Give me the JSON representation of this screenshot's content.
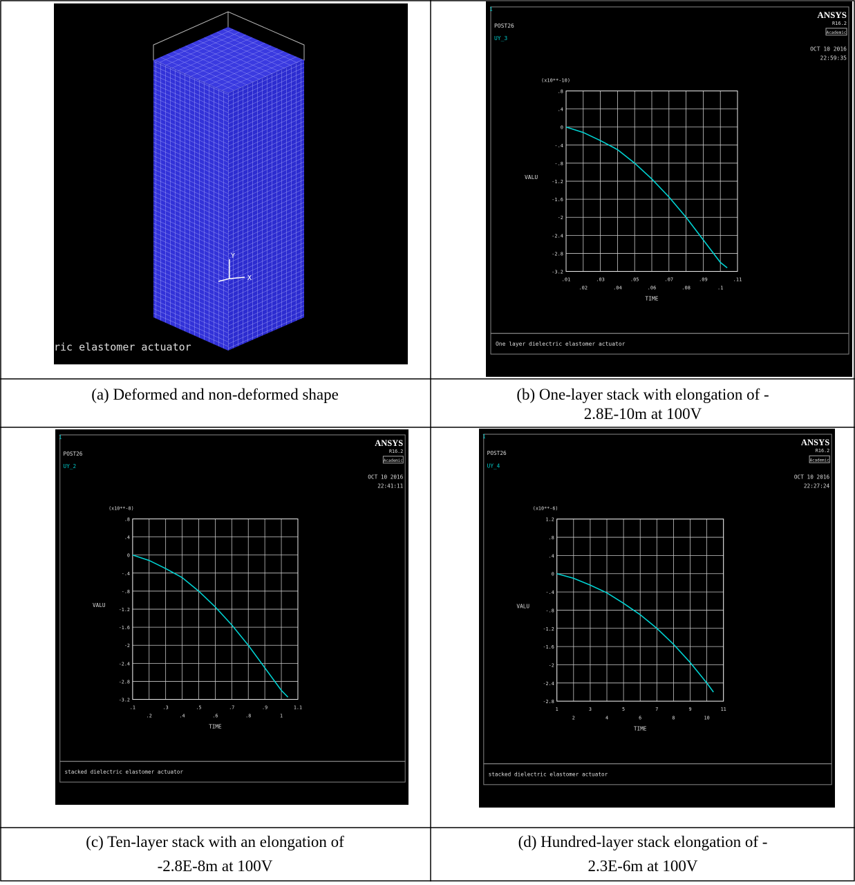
{
  "panels": [
    {
      "image": {
        "footer": "ric elastomer actuator",
        "axis_labels": [
          "Y",
          "X"
        ]
      },
      "caption": [
        "(a) Deformed and non-deformed shape"
      ]
    },
    {
      "plot": {
        "type": "line",
        "index": "1",
        "header": "POST26",
        "variable": "UY_3",
        "brand": "ANSYS",
        "version": "R16.2",
        "license": "Academic",
        "date": "OCT 10 2016",
        "time": "22:59:35",
        "multiplier": "(x10**-10)",
        "ylabel": "VALU",
        "xlabel": "TIME",
        "footer": "One layer dielectric elastomer actuator",
        "color": "#00d4d4",
        "x": [
          0.01,
          0.02,
          0.03,
          0.04,
          0.05,
          0.06,
          0.07,
          0.08,
          0.09,
          0.1,
          0.104
        ],
        "values": [
          0,
          -0.12,
          -0.3,
          -0.5,
          -0.8,
          -1.15,
          -1.55,
          -2.0,
          -2.5,
          -3.0,
          -3.12
        ],
        "xlim": [
          0.01,
          0.11
        ],
        "ylim": [
          -3.2,
          0.8
        ],
        "xticks": [
          {
            "value": 0.01,
            "label": ".01"
          },
          {
            "value": 0.02,
            "label": ".02"
          },
          {
            "value": 0.03,
            "label": ".03"
          },
          {
            "value": 0.04,
            "label": ".04"
          },
          {
            "value": 0.05,
            "label": ".05"
          },
          {
            "value": 0.06,
            "label": ".06"
          },
          {
            "value": 0.07,
            "label": ".07"
          },
          {
            "value": 0.08,
            "label": ".08"
          },
          {
            "value": 0.09,
            "label": ".09"
          },
          {
            "value": 0.1,
            "label": ".1"
          },
          {
            "value": 0.11,
            "label": ".11"
          }
        ],
        "yticks": [
          {
            "value": 0.8,
            "label": ".8"
          },
          {
            "value": 0.4,
            "label": ".4"
          },
          0,
          {
            "value": -0.4,
            "label": "-.4"
          },
          {
            "value": -0.8,
            "label": "-.8"
          },
          -1.2,
          -1.6,
          -2,
          -2.4,
          -2.8,
          -3.2
        ]
      },
      "caption": [
        "(b) One-layer stack with elongation of -",
        "2.8E-10m at 100V"
      ]
    },
    {
      "plot": {
        "type": "line",
        "index": "1",
        "header": "POST26",
        "variable": "UY_2",
        "brand": "ANSYS",
        "version": "R16.2",
        "license": "Academic",
        "date": "OCT 10 2016",
        "time": "22:41:11",
        "multiplier": "(x10**-8)",
        "ylabel": "VALU",
        "xlabel": "TIME",
        "footer": "stacked dielectric elastomer actuator",
        "color": "#00d4d4",
        "x": [
          0.1,
          0.2,
          0.3,
          0.4,
          0.5,
          0.6,
          0.7,
          0.8,
          0.9,
          1.0,
          1.04
        ],
        "values": [
          0,
          -0.12,
          -0.3,
          -0.5,
          -0.8,
          -1.15,
          -1.55,
          -2.0,
          -2.5,
          -3.0,
          -3.15
        ],
        "xlim": [
          0.1,
          1.1
        ],
        "ylim": [
          -3.2,
          0.8
        ],
        "xticks": [
          {
            "value": 0.1,
            "label": ".1"
          },
          {
            "value": 0.2,
            "label": ".2"
          },
          {
            "value": 0.3,
            "label": ".3"
          },
          {
            "value": 0.4,
            "label": ".4"
          },
          {
            "value": 0.5,
            "label": ".5"
          },
          {
            "value": 0.6,
            "label": ".6"
          },
          {
            "value": 0.7,
            "label": ".7"
          },
          {
            "value": 0.8,
            "label": ".8"
          },
          {
            "value": 0.9,
            "label": ".9"
          },
          1,
          1.1
        ],
        "yticks": [
          {
            "value": 0.8,
            "label": ".8"
          },
          {
            "value": 0.4,
            "label": ".4"
          },
          0,
          {
            "value": -0.4,
            "label": "-.4"
          },
          {
            "value": -0.8,
            "label": "-.8"
          },
          -1.2,
          -1.6,
          -2,
          -2.4,
          -2.8,
          -3.2
        ]
      },
      "caption": [
        "(c) Ten-layer stack with an elongation of",
        "-2.8E-8m at 100V"
      ]
    },
    {
      "plot": {
        "type": "line",
        "index": "1",
        "header": "POST26",
        "variable": "UY_4",
        "brand": "ANSYS",
        "version": "R16.2",
        "license": "Academic",
        "date": "OCT 10 2016",
        "time": "22:27:24",
        "multiplier": "(x10**-6)",
        "ylabel": "VALU",
        "xlabel": "TIME",
        "footer": "stacked dielectric elastomer actuator",
        "color": "#00d4d4",
        "x": [
          1,
          2,
          3,
          4,
          5,
          6,
          7,
          8,
          9,
          10,
          10.4
        ],
        "values": [
          0,
          -0.1,
          -0.25,
          -0.42,
          -0.65,
          -0.9,
          -1.2,
          -1.55,
          -1.95,
          -2.4,
          -2.6
        ],
        "xlim": [
          1,
          11
        ],
        "ylim": [
          -2.8,
          1.2
        ],
        "xticks": [
          1,
          2,
          3,
          4,
          5,
          6,
          7,
          8,
          9,
          10,
          11
        ],
        "yticks": [
          1.2,
          {
            "value": 0.8,
            "label": ".8"
          },
          {
            "value": 0.4,
            "label": ".4"
          },
          0,
          {
            "value": -0.4,
            "label": "-.4"
          },
          {
            "value": -0.8,
            "label": "-.8"
          },
          -1.2,
          -1.6,
          -2,
          -2.4,
          -2.8
        ]
      },
      "caption": [
        "(d) Hundred-layer stack elongation of -",
        "2.3E-6m at 100V"
      ]
    }
  ]
}
